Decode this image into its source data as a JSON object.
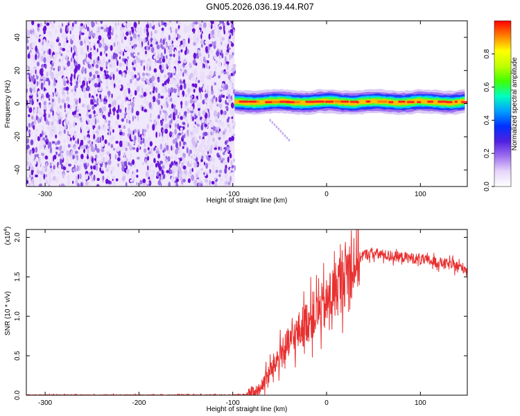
{
  "title": "GN05.2026.036.19.44.R07",
  "colors": {
    "snr_line": "#e83030",
    "noise_low": "#d9c8f2",
    "noise_high": "#6a12d8",
    "colormap": [
      "#ffffff",
      "#e6d6fa",
      "#a070f0",
      "#5020e0",
      "#0030ff",
      "#00a0ff",
      "#00ffc0",
      "#40ff00",
      "#c0ff00",
      "#ffff00",
      "#ff8000",
      "#ff0000"
    ]
  },
  "chart_data": [
    {
      "type": "heatmap",
      "xlabel": "Height of straight line (km)",
      "ylabel": "Frequency (Hz)",
      "xlim": [
        -320,
        150
      ],
      "ylim": [
        -50,
        50
      ],
      "xticks": [
        -300,
        -200,
        -100,
        0,
        100
      ],
      "yticks": [
        -40,
        -20,
        0,
        20,
        40
      ],
      "xtick_labels": [
        "-300",
        "-200",
        "-100",
        "0",
        "100"
      ],
      "ytick_labels": [
        "-40",
        "-20",
        "0",
        "20",
        "40"
      ],
      "noise_region_x": [
        -320,
        -98
      ],
      "signal_track": {
        "x_range": [
          -98,
          150
        ],
        "freq_center": 1,
        "freq_halfwidth": 3,
        "peak_amplitude": 0.95
      },
      "faint_trace": {
        "x": [
          -60,
          -40
        ],
        "freq": [
          -10,
          -22
        ]
      },
      "colorbar": {
        "label": "Normalized spectral amplitude",
        "range": [
          0,
          1
        ],
        "ticks": [
          0.0,
          0.2,
          0.4,
          0.6,
          0.8
        ],
        "tick_labels": [
          "0.0",
          "0.2",
          "0.4",
          "0.6",
          "0.8"
        ]
      }
    },
    {
      "type": "line",
      "xlabel": "Height of straight line (km)",
      "ylabel": "SNR (10 * v/v)",
      "y_scale_label": "(x10",
      "y_scale_exp": "4",
      "y_scale_close": ")",
      "xlim": [
        -320,
        150
      ],
      "ylim": [
        0,
        2.1
      ],
      "xticks": [
        -300,
        -200,
        -100,
        0,
        100
      ],
      "yticks": [
        0.0,
        0.5,
        1.0,
        1.5,
        2.0
      ],
      "xtick_labels": [
        "-300",
        "-200",
        "-100",
        "0",
        "100"
      ],
      "ytick_labels": [
        "0.0",
        "0.5",
        "1.0",
        "1.5",
        "2.0"
      ],
      "series": [
        {
          "x": [
            -320,
            -100,
            -80,
            -70,
            -60,
            -50,
            -40,
            -30,
            -20,
            -10,
            0,
            10,
            20,
            30,
            40,
            50,
            60,
            70,
            80,
            90,
            100,
            110,
            120,
            130,
            140,
            150
          ],
          "y": [
            0.0,
            0.0,
            0.01,
            0.1,
            0.3,
            0.5,
            0.65,
            0.8,
            0.95,
            1.05,
            1.15,
            1.35,
            1.55,
            1.7,
            1.78,
            1.8,
            1.78,
            1.76,
            1.75,
            1.74,
            1.72,
            1.7,
            1.68,
            1.66,
            1.63,
            1.6
          ]
        }
      ]
    }
  ]
}
